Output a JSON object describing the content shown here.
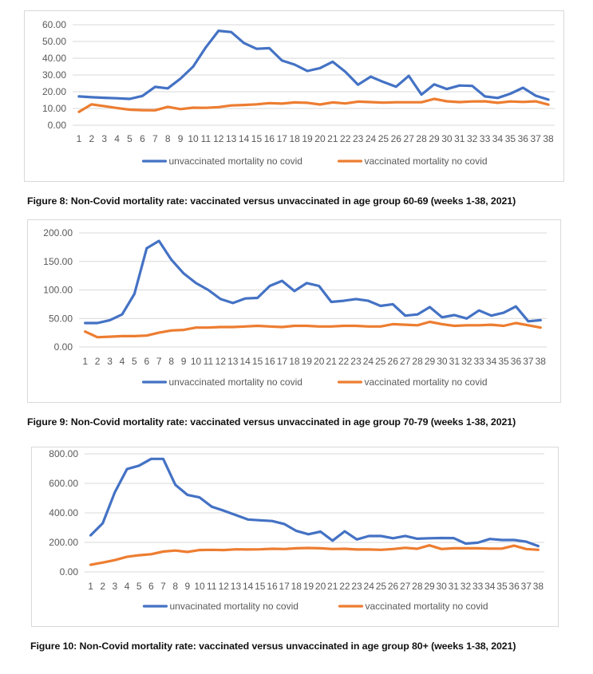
{
  "colors": {
    "unvaccinated": "#4472c4",
    "vaccinated": "#ed7d31",
    "gridline": "#d9d9d9",
    "axis_text": "#595959"
  },
  "chart_data": [
    {
      "type": "line",
      "title": "",
      "caption": "Figure 8: Non-Covid mortality rate: vaccinated versus unvaccinated in age group 60-69 (weeks 1-38, 2021)",
      "xlabel": "",
      "ylabel": "",
      "ylim": [
        0,
        60
      ],
      "yticks": [
        "0.00",
        "10.00",
        "20.00",
        "30.00",
        "40.00",
        "50.00",
        "60.00"
      ],
      "ytick_values": [
        0,
        10,
        20,
        30,
        40,
        50,
        60
      ],
      "grid": true,
      "legend_position": "bottom",
      "x": [
        "1",
        "2",
        "3",
        "4",
        "5",
        "6",
        "7",
        "8",
        "9",
        "10",
        "11",
        "12",
        "13",
        "14",
        "15",
        "16",
        "17",
        "18",
        "19",
        "20",
        "21",
        "22",
        "23",
        "24",
        "25",
        "26",
        "27",
        "28",
        "29",
        "30",
        "31",
        "32",
        "33",
        "34",
        "35",
        "36",
        "37",
        "38"
      ],
      "series": [
        {
          "name": "unvaccinated mortality no covid",
          "color_key": "unvaccinated",
          "values": [
            17.2,
            16.7,
            16.4,
            16.1,
            15.7,
            17.5,
            22.9,
            22.0,
            27.8,
            35.0,
            46.5,
            56.4,
            55.6,
            49.1,
            45.6,
            46.0,
            38.6,
            36.2,
            32.4,
            34.1,
            37.9,
            31.9,
            24.2,
            29.0,
            25.8,
            23.0,
            29.5,
            18.3,
            24.4,
            21.6,
            23.7,
            23.5,
            17.2,
            16.3,
            18.8,
            22.4,
            17.6,
            15.3
          ]
        },
        {
          "name": "vaccinated mortality no covid",
          "color_key": "vaccinated",
          "values": [
            8.0,
            12.5,
            11.4,
            10.3,
            9.3,
            9.0,
            8.9,
            11.0,
            9.6,
            10.5,
            10.4,
            10.8,
            11.8,
            12.1,
            12.5,
            13.2,
            12.9,
            13.6,
            13.4,
            12.4,
            13.6,
            13.0,
            14.1,
            13.8,
            13.5,
            13.7,
            13.7,
            13.7,
            15.7,
            14.3,
            13.8,
            14.2,
            14.3,
            13.4,
            14.2,
            13.9,
            14.3,
            12.3
          ]
        }
      ]
    },
    {
      "type": "line",
      "title": "",
      "caption": "Figure 9: Non-Covid mortality rate: vaccinated versus unvaccinated in age group 70-79 (weeks 1-38, 2021)",
      "xlabel": "",
      "ylabel": "",
      "ylim": [
        0,
        200
      ],
      "yticks": [
        "0.00",
        "50.00",
        "100.00",
        "150.00",
        "200.00"
      ],
      "ytick_values": [
        0,
        50,
        100,
        150,
        200
      ],
      "grid": true,
      "legend_position": "bottom",
      "x": [
        "1",
        "2",
        "3",
        "4",
        "5",
        "6",
        "7",
        "8",
        "9",
        "10",
        "11",
        "12",
        "13",
        "14",
        "15",
        "16",
        "17",
        "18",
        "19",
        "20",
        "21",
        "22",
        "23",
        "24",
        "25",
        "26",
        "27",
        "28",
        "29",
        "30",
        "31",
        "32",
        "33",
        "34",
        "35",
        "36",
        "37",
        "38"
      ],
      "series": [
        {
          "name": "unvaccinated mortality no covid",
          "color_key": "unvaccinated",
          "values": [
            42,
            42,
            47,
            57,
            93,
            173,
            186,
            153,
            129,
            112,
            100,
            84,
            77,
            85,
            86,
            107,
            116,
            98,
            112,
            107,
            79,
            81,
            84,
            81,
            72,
            75,
            55,
            57,
            70,
            52,
            56,
            50,
            64,
            55,
            60,
            71,
            45,
            47
          ]
        },
        {
          "name": "vaccinated mortality no covid",
          "color_key": "vaccinated",
          "values": [
            27,
            17,
            18,
            19,
            19,
            20,
            25,
            29,
            30,
            34,
            34,
            35,
            35,
            36,
            37,
            36,
            35,
            37,
            37,
            36,
            36,
            37,
            37,
            36,
            36,
            40,
            39,
            38,
            44,
            40,
            37,
            38,
            38,
            39,
            37,
            42,
            38,
            34
          ]
        }
      ]
    },
    {
      "type": "line",
      "title": "",
      "caption": "Figure 10: Non-Covid mortality rate: vaccinated versus unvaccinated in age group 80+ (weeks 1-38, 2021)",
      "xlabel": "",
      "ylabel": "",
      "ylim": [
        0,
        800
      ],
      "yticks": [
        "0.00",
        "200.00",
        "400.00",
        "600.00",
        "800.00"
      ],
      "ytick_values": [
        0,
        200,
        400,
        600,
        800
      ],
      "grid": true,
      "legend_position": "bottom",
      "x": [
        "1",
        "2",
        "3",
        "4",
        "5",
        "6",
        "7",
        "8",
        "9",
        "10",
        "11",
        "12",
        "13",
        "14",
        "15",
        "16",
        "17",
        "18",
        "19",
        "20",
        "21",
        "22",
        "23",
        "24",
        "25",
        "26",
        "27",
        "28",
        "29",
        "30",
        "31",
        "32",
        "33",
        "34",
        "35",
        "36",
        "37",
        "38"
      ],
      "series": [
        {
          "name": "unvacinated mortality no covid",
          "color_key": "unvaccinated",
          "values": [
            248,
            330,
            540,
            697,
            720,
            766,
            766,
            590,
            522,
            505,
            442,
            415,
            385,
            355,
            350,
            345,
            325,
            278,
            255,
            273,
            212,
            275,
            220,
            243,
            243,
            228,
            244,
            225,
            228,
            230,
            229,
            192,
            198,
            223,
            216,
            216,
            205,
            175
          ]
        },
        {
          "name": "vaccinated mortality no covid",
          "color_key": "vaccinated",
          "values": [
            48,
            63,
            80,
            102,
            113,
            120,
            138,
            145,
            135,
            148,
            150,
            148,
            153,
            152,
            153,
            157,
            155,
            160,
            162,
            160,
            155,
            157,
            152,
            152,
            150,
            155,
            163,
            157,
            180,
            155,
            160,
            160,
            160,
            158,
            158,
            178,
            155,
            150
          ]
        }
      ]
    }
  ]
}
